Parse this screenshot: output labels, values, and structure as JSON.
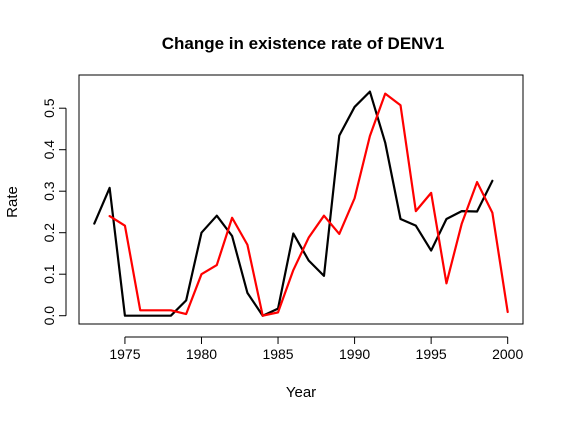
{
  "chart_data": {
    "type": "line",
    "title": "Change in existence rate of DENV1",
    "xlabel": "Year",
    "ylabel": "Rate",
    "xlim": [
      1972,
      2001
    ],
    "ylim": [
      -0.02,
      0.58
    ],
    "xticks": [
      1975,
      1980,
      1985,
      1990,
      1995,
      2000
    ],
    "yticks": [
      0.0,
      0.1,
      0.2,
      0.3,
      0.4,
      0.5
    ],
    "xtick_labels": [
      "1975",
      "1980",
      "1985",
      "1990",
      "1995",
      "2000"
    ],
    "ytick_labels": [
      "0.0",
      "0.1",
      "0.2",
      "0.3",
      "0.4",
      "0.5"
    ],
    "grid": false,
    "legend": null,
    "series": [
      {
        "color": "#000000",
        "x": [
          1973,
          1974,
          1975,
          1976,
          1977,
          1978,
          1979,
          1980,
          1981,
          1982,
          1983,
          1984,
          1985,
          1986,
          1987,
          1988,
          1989,
          1990,
          1991,
          1992,
          1993,
          1994,
          1995,
          1996,
          1997,
          1998,
          1999
        ],
        "y": [
          0.222,
          0.308,
          0.0,
          0.0,
          0.0,
          0.0,
          0.037,
          0.2,
          0.241,
          0.192,
          0.055,
          0.0,
          0.017,
          0.198,
          0.133,
          0.096,
          0.434,
          0.503,
          0.54,
          0.417,
          0.233,
          0.217,
          0.157,
          0.233,
          0.252,
          0.251,
          0.325
        ]
      },
      {
        "color": "#ff0000",
        "x": [
          1974,
          1975,
          1976,
          1977,
          1978,
          1979,
          1980,
          1981,
          1982,
          1983,
          1984,
          1985,
          1986,
          1987,
          1988,
          1989,
          1990,
          1991,
          1992,
          1993,
          1994,
          1995,
          1996,
          1997,
          1998,
          1999,
          2000
        ],
        "y": [
          0.24,
          0.217,
          0.013,
          0.013,
          0.013,
          0.004,
          0.1,
          0.122,
          0.236,
          0.171,
          0.0,
          0.008,
          0.11,
          0.188,
          0.241,
          0.197,
          0.283,
          0.433,
          0.535,
          0.507,
          0.252,
          0.296,
          0.078,
          0.222,
          0.322,
          0.248,
          0.009
        ]
      }
    ]
  }
}
